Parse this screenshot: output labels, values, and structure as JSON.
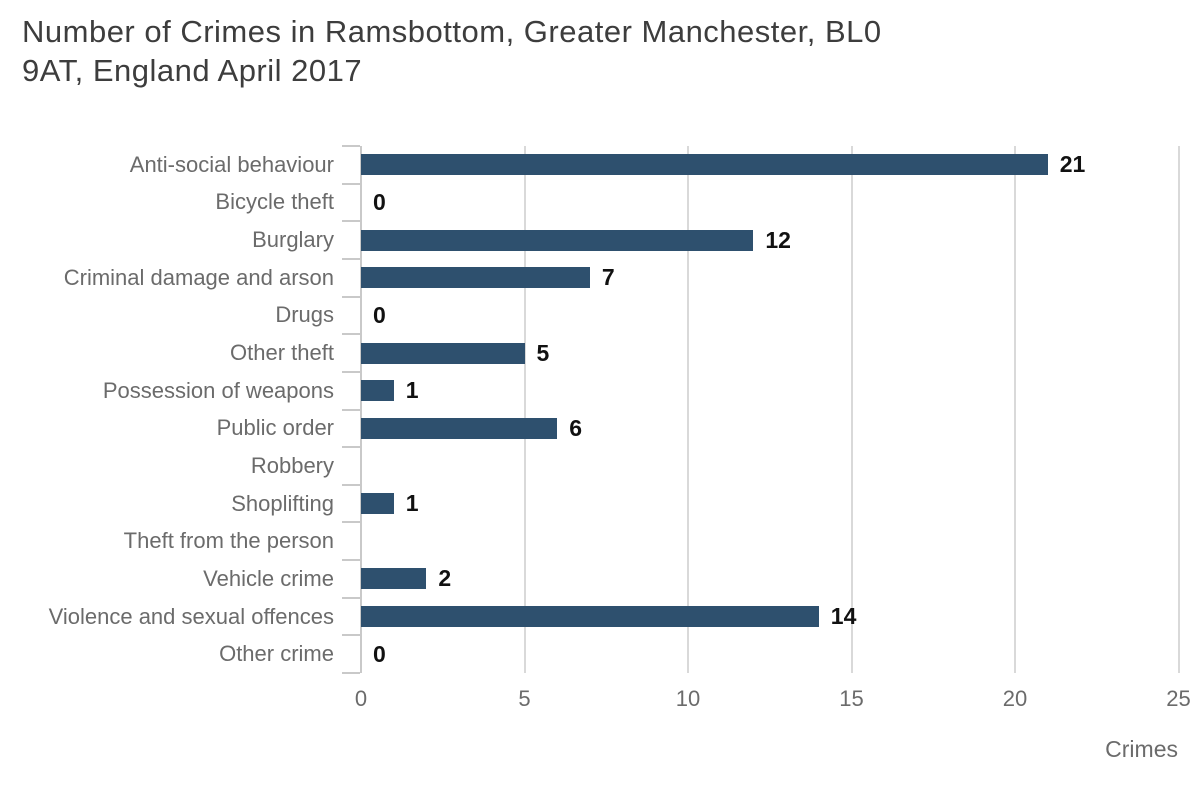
{
  "title": {
    "text": "Number of Crimes in Ramsbottom, Greater Manchester, BL0 9AT, England April 2017",
    "lines": [
      "Number of Crimes in Ramsbottom, Greater Manchester, BL0",
      "9AT, England April 2017"
    ]
  },
  "colors": {
    "bar": "#2e506e",
    "title_text": "#3d3d3d",
    "label_text": "#6b6b6b",
    "value_text": "#111111",
    "grid_line": "#d9d9d9",
    "axis_line": "#c9c9c9",
    "background": "#ffffff"
  },
  "chart_data": {
    "type": "bar",
    "orientation": "horizontal",
    "title": "Number of Crimes in Ramsbottom, Greater Manchester, BL0 9AT, England April 2017",
    "xlabel": "Crimes",
    "ylabel": "",
    "xlim": [
      0,
      25
    ],
    "xticks": [
      0,
      5,
      10,
      15,
      20,
      25
    ],
    "grid": "vertical-only",
    "legend": "none",
    "categories": [
      "Anti-social behaviour",
      "Bicycle theft",
      "Burglary",
      "Criminal damage and arson",
      "Drugs",
      "Other theft",
      "Possession of weapons",
      "Public order",
      "Robbery",
      "Shoplifting",
      "Theft from the person",
      "Vehicle crime",
      "Violence and sexual offences",
      "Other crime"
    ],
    "values": [
      21,
      0,
      12,
      7,
      0,
      5,
      1,
      6,
      null,
      1,
      null,
      2,
      14,
      0
    ]
  }
}
